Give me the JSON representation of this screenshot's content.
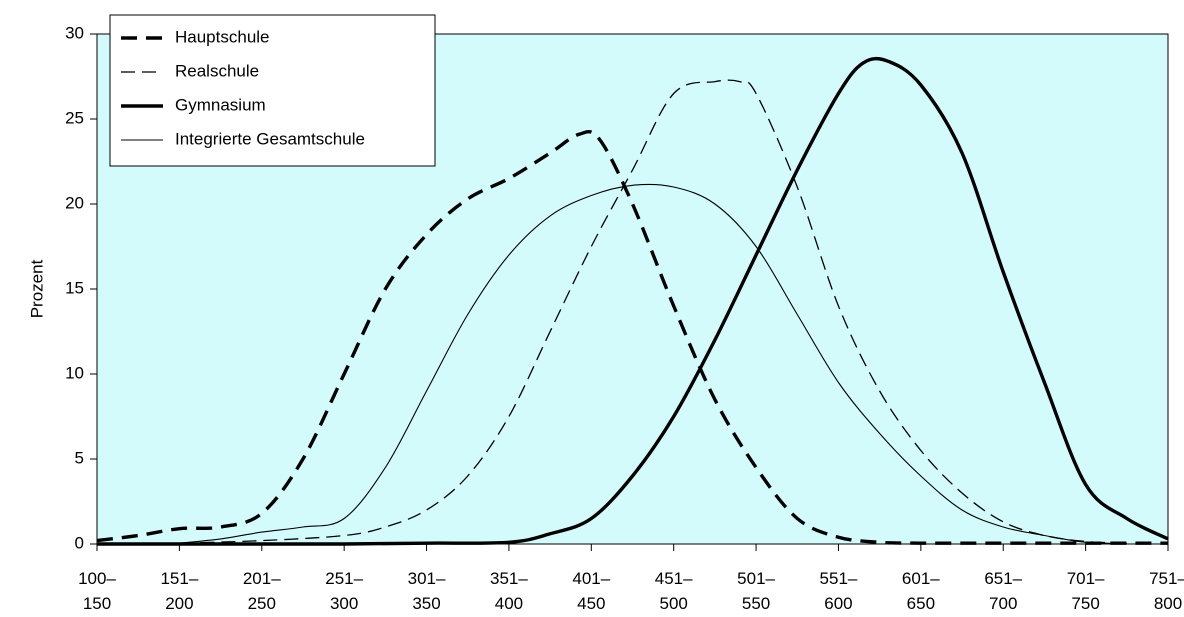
{
  "chart_data": {
    "type": "line",
    "title": "",
    "xlabel": "",
    "ylabel": "Prozent",
    "ylim": [
      0,
      30
    ],
    "yticks": [
      0,
      5,
      10,
      15,
      20,
      25,
      30
    ],
    "grid": false,
    "legend_position": "top-left",
    "plot_background": "#d4fbfc",
    "categories": [
      [
        "100–",
        "150"
      ],
      [
        "151–",
        "200"
      ],
      [
        "201–",
        "250"
      ],
      [
        "251–",
        "300"
      ],
      [
        "301–",
        "350"
      ],
      [
        "351–",
        "400"
      ],
      [
        "401–",
        "450"
      ],
      [
        "451–",
        "500"
      ],
      [
        "501–",
        "550"
      ],
      [
        "551–",
        "600"
      ],
      [
        "601–",
        "650"
      ],
      [
        "651–",
        "700"
      ],
      [
        "701–",
        "750"
      ],
      [
        "751–",
        "800"
      ]
    ],
    "series": [
      {
        "name": "Hauptschule",
        "style": "thick-dashed",
        "points": [
          [
            0,
            0.2
          ],
          [
            0.5,
            0.5
          ],
          [
            1,
            0.9
          ],
          [
            1.5,
            1.0
          ],
          [
            2,
            1.8
          ],
          [
            2.5,
            5.0
          ],
          [
            3,
            10.0
          ],
          [
            3.5,
            15.0
          ],
          [
            4,
            18.2
          ],
          [
            4.5,
            20.3
          ],
          [
            5,
            21.5
          ],
          [
            5.5,
            23.0
          ],
          [
            5.85,
            24.1
          ],
          [
            6.1,
            23.8
          ],
          [
            6.5,
            20.0
          ],
          [
            7,
            14.0
          ],
          [
            7.5,
            8.5
          ],
          [
            8,
            4.5
          ],
          [
            8.5,
            1.5
          ],
          [
            9,
            0.4
          ],
          [
            9.5,
            0.1
          ],
          [
            10,
            0.05
          ],
          [
            11,
            0.05
          ],
          [
            12,
            0.05
          ],
          [
            13,
            0.05
          ]
        ]
      },
      {
        "name": "Realschule",
        "style": "thin-dashed",
        "points": [
          [
            1,
            0.05
          ],
          [
            2,
            0.2
          ],
          [
            3,
            0.5
          ],
          [
            3.5,
            1.0
          ],
          [
            4,
            2.0
          ],
          [
            4.5,
            4.0
          ],
          [
            5,
            7.5
          ],
          [
            5.5,
            12.5
          ],
          [
            6,
            17.5
          ],
          [
            6.5,
            22.0
          ],
          [
            7,
            26.5
          ],
          [
            7.5,
            27.2
          ],
          [
            7.8,
            27.2
          ],
          [
            8,
            26.5
          ],
          [
            8.5,
            21.0
          ],
          [
            9,
            14.0
          ],
          [
            9.5,
            9.0
          ],
          [
            10,
            5.5
          ],
          [
            10.5,
            3.0
          ],
          [
            11,
            1.3
          ],
          [
            11.5,
            0.5
          ],
          [
            12,
            0.15
          ],
          [
            12.5,
            0.05
          ]
        ]
      },
      {
        "name": "Gymnasium",
        "style": "thick-solid",
        "points": [
          [
            0,
            0
          ],
          [
            1,
            0
          ],
          [
            2,
            0
          ],
          [
            3,
            0
          ],
          [
            4,
            0.05
          ],
          [
            5,
            0.1
          ],
          [
            5.5,
            0.6
          ],
          [
            6,
            1.5
          ],
          [
            6.5,
            4.0
          ],
          [
            7,
            7.5
          ],
          [
            7.5,
            12.0
          ],
          [
            8,
            17.0
          ],
          [
            8.5,
            22.0
          ],
          [
            9,
            26.5
          ],
          [
            9.3,
            28.3
          ],
          [
            9.6,
            28.4
          ],
          [
            10,
            27.0
          ],
          [
            10.5,
            23.0
          ],
          [
            11,
            16.0
          ],
          [
            11.5,
            9.5
          ],
          [
            12,
            3.5
          ],
          [
            12.5,
            1.5
          ],
          [
            13,
            0.3
          ]
        ]
      },
      {
        "name": "Integrierte Gesamtschule",
        "style": "thin-solid",
        "points": [
          [
            1,
            0.05
          ],
          [
            1.5,
            0.3
          ],
          [
            2,
            0.7
          ],
          [
            2.5,
            1.0
          ],
          [
            3,
            1.5
          ],
          [
            3.5,
            4.5
          ],
          [
            4,
            9.0
          ],
          [
            4.5,
            13.5
          ],
          [
            5,
            17.0
          ],
          [
            5.5,
            19.3
          ],
          [
            6,
            20.5
          ],
          [
            6.5,
            21.1
          ],
          [
            7,
            21.0
          ],
          [
            7.5,
            20.0
          ],
          [
            8,
            17.5
          ],
          [
            8.5,
            13.5
          ],
          [
            9,
            9.5
          ],
          [
            9.5,
            6.5
          ],
          [
            10,
            4.0
          ],
          [
            10.5,
            2.0
          ],
          [
            11,
            1.0
          ],
          [
            11.5,
            0.5
          ],
          [
            12,
            0.1
          ],
          [
            12.5,
            0.03
          ]
        ]
      }
    ]
  }
}
